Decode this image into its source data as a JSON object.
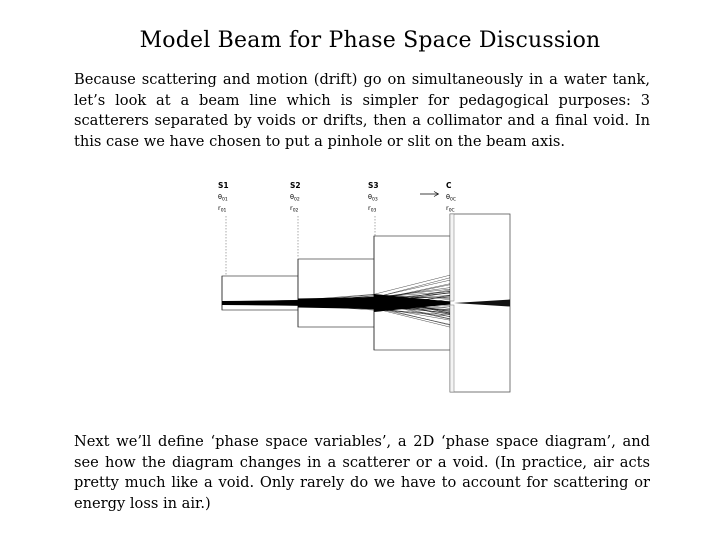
{
  "title": "Model Beam for Phase Space Discussion",
  "intro": "Because scattering and motion (drift) go on simultaneously in a water tank, let’s look at a beam line which is simpler for pedagogical purposes: 3 scatterers separated by voids or drifts, then a collimator and a final void. In this case we have chosen to put a pinhole or slit on the beam axis.",
  "diagram": {
    "elements": [
      {
        "name": "S1",
        "theta": "θ",
        "theta_sub": "01",
        "r": "r",
        "r_sub": "01"
      },
      {
        "name": "S2",
        "theta": "θ",
        "theta_sub": "02",
        "r": "r",
        "r_sub": "02"
      },
      {
        "name": "S3",
        "theta": "θ",
        "theta_sub": "03",
        "r": "r",
        "r_sub": "03"
      },
      {
        "name": "C",
        "theta": "θ",
        "theta_sub": "0C",
        "r": "r",
        "r_sub": "0C"
      }
    ]
  },
  "outro": "Next we’ll define ‘phase space variables’, a 2D ‘phase space diagram’, and see how the diagram changes in a scatterer or a void. (In practice, air acts pretty much like a void. Only rarely do we have to account for scattering or energy loss in air.)"
}
